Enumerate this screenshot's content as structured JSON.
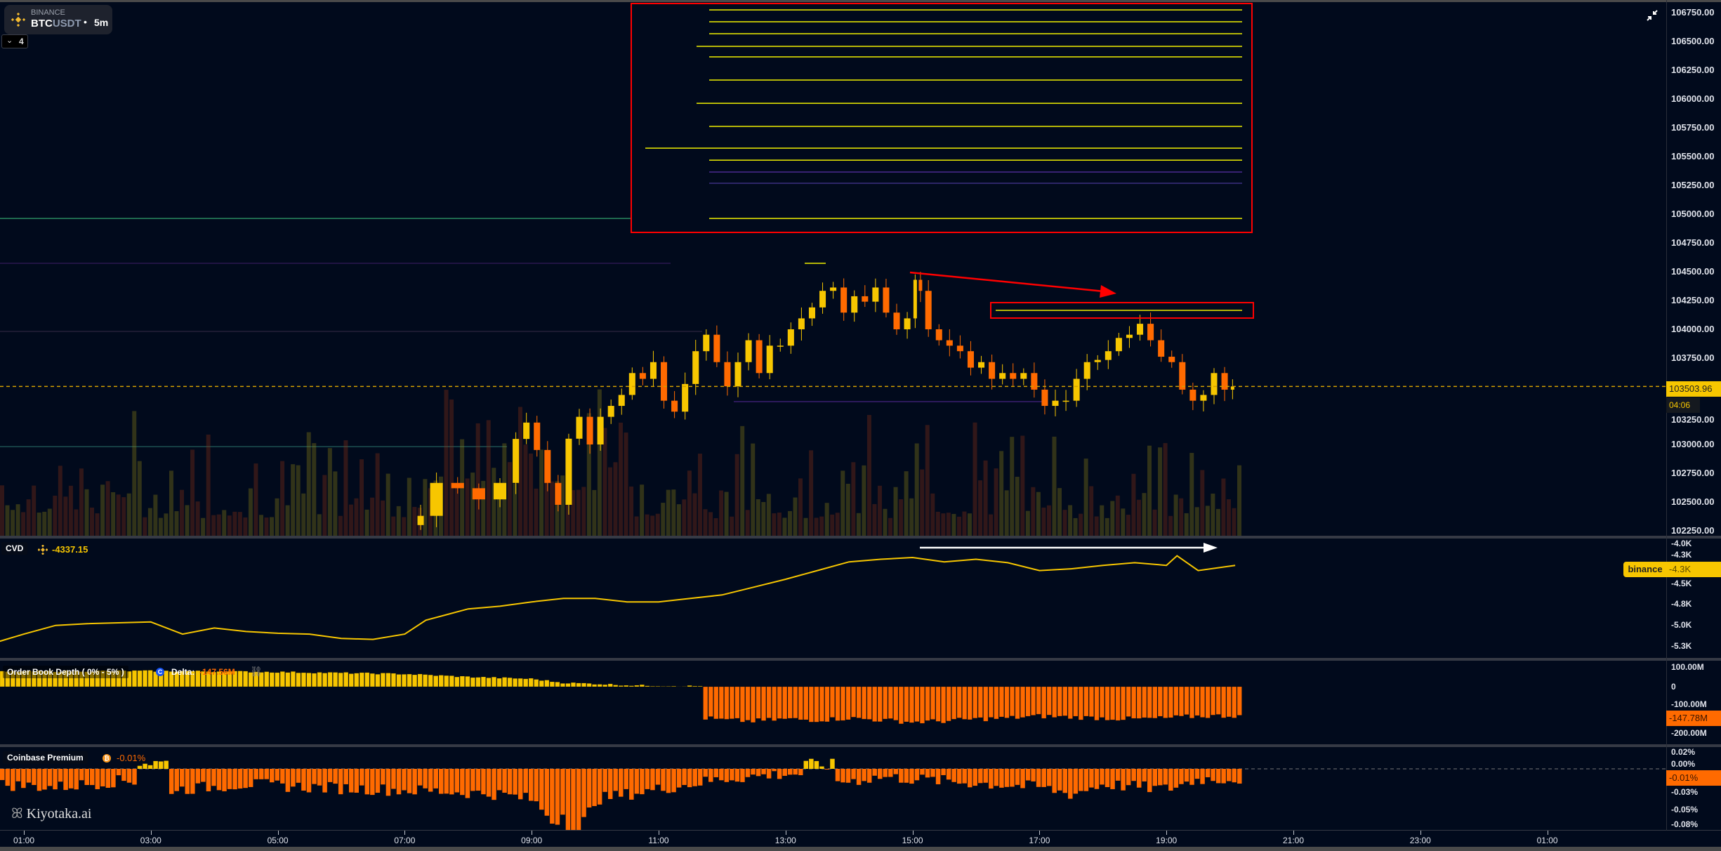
{
  "header": {
    "exchange": "BINANCE",
    "base": "BTC",
    "quote": "USDT",
    "separator": "•",
    "timeframe": "5m",
    "indicator_toggle_count": "4"
  },
  "colors": {
    "background": "#010a1c",
    "up": "#f7c600",
    "down": "#ff6a00",
    "annotation": "#ff0000",
    "orderbook_level": "#f0f000"
  },
  "price_axis": {
    "ticks": [
      "106750.00",
      "106500.00",
      "106250.00",
      "106000.00",
      "105750.00",
      "105500.00",
      "105250.00",
      "105000.00",
      "104750.00",
      "104500.00",
      "104250.00",
      "104000.00",
      "103750.00",
      "103250.00",
      "103000.00",
      "102750.00",
      "102500.00",
      "102250.00"
    ],
    "current_price": "103503.96",
    "countdown": "04:06"
  },
  "time_axis": {
    "ticks": [
      "01:00",
      "03:00",
      "05:00",
      "07:00",
      "09:00",
      "11:00",
      "13:00",
      "15:00",
      "17:00",
      "19:00",
      "21:00",
      "23:00",
      "01:00"
    ]
  },
  "cvd": {
    "label": "CVD",
    "value": "-4337.15",
    "axis_ticks": [
      "-4.0K",
      "-4.3K",
      "-4.5K",
      "-4.8K",
      "-5.0K",
      "-5.3K"
    ],
    "tag_source": "binance",
    "tag_value": "-4.3K"
  },
  "order_book": {
    "label": "Order Book Depth ( 0% - 5% )",
    "delta_label": "Delta:",
    "delta_value": "-147.56M",
    "axis_ticks": [
      "100.00M",
      "0",
      "-100.00M",
      "-200.00M"
    ],
    "tag_value": "-147.78M"
  },
  "coinbase_premium": {
    "label": "Coinbase Premium",
    "value": "-0.01%",
    "axis_ticks": [
      "0.02%",
      "0.00%",
      "-0.03%",
      "-0.05%",
      "-0.08%"
    ],
    "tag_value": "-0.01%"
  },
  "watermark": "Kiyotaka.ai",
  "chart_data": [
    {
      "type": "candlestick",
      "title": "",
      "ylim": [
        102250,
        106750
      ],
      "x_unit": "hour of day",
      "times": [
        "07:20",
        "07:40",
        "08:00",
        "08:20",
        "08:40",
        "08:50",
        "09:00",
        "09:10",
        "09:20",
        "09:30",
        "09:40",
        "09:50",
        "10:00",
        "10:10",
        "10:20",
        "10:30",
        "10:40",
        "10:50",
        "11:00",
        "11:10",
        "11:20",
        "11:30",
        "11:40",
        "11:50",
        "12:00",
        "12:10",
        "12:20",
        "12:30",
        "12:40",
        "12:50",
        "13:00",
        "13:10",
        "13:20",
        "13:30",
        "13:40",
        "13:50",
        "14:00",
        "14:10",
        "14:20",
        "14:30",
        "14:40",
        "14:50",
        "15:00",
        "15:05",
        "15:10",
        "15:20",
        "15:30",
        "15:40",
        "15:50",
        "16:00",
        "16:10",
        "16:20",
        "16:30",
        "16:40",
        "16:50",
        "17:00",
        "17:10",
        "17:20",
        "17:30",
        "17:40",
        "17:50",
        "18:00",
        "18:10",
        "18:20",
        "18:30",
        "18:40",
        "18:50",
        "19:00",
        "19:10",
        "19:20",
        "19:30",
        "19:40",
        "19:50",
        "20:00",
        "20:05"
      ],
      "close": [
        102380,
        102666,
        102620,
        102523,
        102666,
        103048,
        103190,
        102952,
        102666,
        102476,
        103050,
        103240,
        103000,
        103240,
        103335,
        103430,
        103620,
        103570,
        103715,
        103380,
        103285,
        103525,
        103810,
        103953,
        103715,
        103505,
        103715,
        103905,
        103620,
        103858,
        103858,
        104000,
        104095,
        104190,
        104334,
        104363,
        104145,
        104287,
        104240,
        104363,
        104145,
        104000,
        104095,
        104430,
        104334,
        104000,
        103905,
        103858,
        103810,
        103667,
        103715,
        103570,
        103620,
        103570,
        103620,
        103476,
        103335,
        103380,
        103380,
        103570,
        103715,
        103734,
        103810,
        103925,
        103953,
        104048,
        103905,
        103762,
        103715,
        103476,
        103380,
        103430,
        103620,
        103476,
        103504
      ]
    },
    {
      "type": "hlines",
      "title": "order book levels",
      "levels": [
        106774,
        106671,
        106567,
        106457,
        106366,
        106165,
        105963,
        105762,
        105573,
        105469,
        104963,
        104165
      ],
      "faint_levels": [
        105366,
        105268,
        104573,
        103982,
        103372,
        102981
      ]
    },
    {
      "type": "line",
      "title": "CVD",
      "ylim": [
        -5.3,
        -4.0
      ],
      "y_unit": "K",
      "times": [
        "00:35",
        "01:00",
        "01:30",
        "02:00",
        "03:00",
        "03:30",
        "04:00",
        "04:30",
        "05:00",
        "05:30",
        "06:00",
        "06:30",
        "07:00",
        "07:20",
        "08:00",
        "08:30",
        "09:00",
        "09:30",
        "10:00",
        "10:30",
        "11:00",
        "11:30",
        "12:00",
        "12:30",
        "13:00",
        "13:30",
        "14:00",
        "14:30",
        "15:00",
        "15:30",
        "16:00",
        "16:30",
        "17:00",
        "17:30",
        "18:00",
        "18:30",
        "19:00",
        "19:10",
        "19:30",
        "20:05"
      ],
      "values": [
        -5.22,
        -5.13,
        -5.03,
        -5.01,
        -4.99,
        -5.13,
        -5.06,
        -5.1,
        -5.12,
        -5.13,
        -5.18,
        -5.19,
        -5.13,
        -4.97,
        -4.84,
        -4.81,
        -4.76,
        -4.72,
        -4.72,
        -4.76,
        -4.76,
        -4.72,
        -4.68,
        -4.59,
        -4.5,
        -4.4,
        -4.3,
        -4.27,
        -4.25,
        -4.3,
        -4.27,
        -4.31,
        -4.4,
        -4.38,
        -4.34,
        -4.31,
        -4.34,
        -4.23,
        -4.4,
        -4.34
      ]
    },
    {
      "type": "bar",
      "title": "Order Book Depth ( 0% - 5% )",
      "y_unit": "M",
      "ylim": [
        -200,
        100
      ],
      "times": [
        "00:30",
        "01:00",
        "02:00",
        "03:00",
        "04:00",
        "05:00",
        "06:00",
        "07:00",
        "08:00",
        "09:00",
        "09:30",
        "10:00",
        "10:30",
        "11:00",
        "11:35",
        "11:45",
        "12:00",
        "12:30",
        "13:00",
        "13:30",
        "14:00",
        "14:30",
        "15:00",
        "15:30",
        "16:00",
        "16:30",
        "17:00",
        "17:30",
        "18:00",
        "18:30",
        "19:00",
        "19:30",
        "20:05"
      ],
      "values": [
        75,
        78,
        80,
        80,
        78,
        75,
        70,
        65,
        50,
        40,
        20,
        15,
        8,
        5,
        3,
        -160,
        -170,
        -175,
        -165,
        -170,
        -160,
        -170,
        -180,
        -175,
        -165,
        -160,
        -150,
        -155,
        -160,
        -165,
        -160,
        -150,
        -147.78
      ]
    },
    {
      "type": "bar",
      "title": "Coinbase Premium",
      "y_unit": "%",
      "ylim": [
        -0.08,
        0.02
      ],
      "times": [
        "00:30",
        "01:30",
        "02:30",
        "03:00",
        "03:30",
        "04:30",
        "05:30",
        "06:30",
        "07:30",
        "08:30",
        "09:00",
        "09:40",
        "10:00",
        "11:00",
        "11:30",
        "12:00",
        "13:00",
        "13:30",
        "14:00",
        "14:30",
        "15:00",
        "16:00",
        "17:00",
        "17:30",
        "18:00",
        "19:00",
        "19:30",
        "20:05"
      ],
      "values": [
        -0.015,
        -0.018,
        -0.012,
        0.006,
        -0.02,
        -0.015,
        -0.018,
        -0.02,
        -0.022,
        -0.025,
        -0.03,
        -0.07,
        -0.03,
        -0.02,
        -0.015,
        -0.01,
        -0.005,
        0.004,
        -0.012,
        -0.008,
        -0.01,
        -0.014,
        -0.018,
        -0.025,
        -0.015,
        -0.02,
        -0.01,
        -0.01
      ]
    }
  ]
}
